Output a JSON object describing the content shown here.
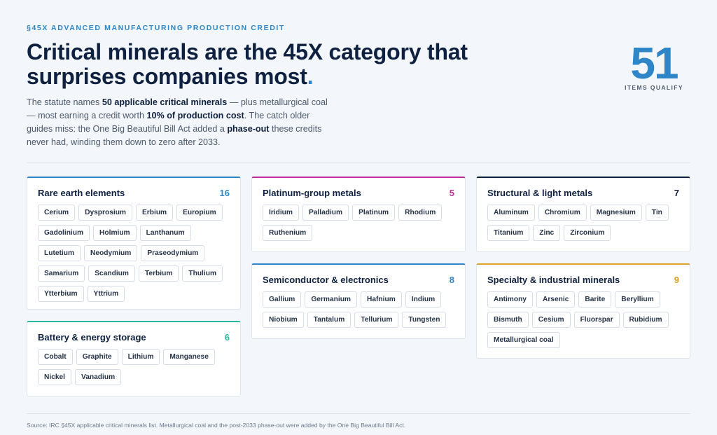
{
  "header": {
    "eyebrow": "§45X ADVANCED MANUFACTURING PRODUCTION CREDIT",
    "title_main": "Critical minerals are the 45X category that surprises companies most",
    "title_dot": ".",
    "intro": {
      "p1": "The statute names ",
      "b1": "50 applicable critical minerals",
      "p2": " — plus metallurgical coal — most earning a credit worth ",
      "b2": "10% of production cost",
      "p3": ". The catch older guides miss: the One Big Beautiful Bill Act added a ",
      "b3": "phase-out",
      "p4": " these credits never had, winding them down to zero after 2033."
    }
  },
  "stat": {
    "number": "51",
    "label": "ITEMS QUALIFY"
  },
  "colors": {
    "blue": "#2e86c9",
    "magenta": "#c22f9c",
    "navy": "#0f2140",
    "teal": "#2bb8a0",
    "gold": "#d9a021"
  },
  "cards": [
    {
      "id": "rare-earth",
      "title": "Rare earth elements",
      "count": "16",
      "accent": "#2e86c9",
      "items": [
        "Cerium",
        "Dysprosium",
        "Erbium",
        "Europium",
        "Gadolinium",
        "Holmium",
        "Lanthanum",
        "Lutetium",
        "Neodymium",
        "Praseodymium",
        "Samarium",
        "Scandium",
        "Terbium",
        "Thulium",
        "Ytterbium",
        "Yttrium"
      ]
    },
    {
      "id": "battery",
      "title": "Battery & energy storage",
      "count": "6",
      "accent": "#2bb8a0",
      "items": [
        "Cobalt",
        "Graphite",
        "Lithium",
        "Manganese",
        "Nickel",
        "Vanadium"
      ]
    },
    {
      "id": "platinum",
      "title": "Platinum-group metals",
      "count": "5",
      "accent": "#c22f9c",
      "items": [
        "Iridium",
        "Palladium",
        "Platinum",
        "Rhodium",
        "Ruthenium"
      ]
    },
    {
      "id": "semiconductor",
      "title": "Semiconductor & electronics",
      "count": "8",
      "accent": "#2e86c9",
      "items": [
        "Gallium",
        "Germanium",
        "Hafnium",
        "Indium",
        "Niobium",
        "Tantalum",
        "Tellurium",
        "Tungsten"
      ]
    },
    {
      "id": "structural",
      "title": "Structural & light metals",
      "count": "7",
      "accent": "#0f2140",
      "items": [
        "Aluminum",
        "Chromium",
        "Magnesium",
        "Tin",
        "Titanium",
        "Zinc",
        "Zirconium"
      ]
    },
    {
      "id": "specialty",
      "title": "Specialty & industrial minerals",
      "count": "9",
      "accent": "#d9a021",
      "items": [
        "Antimony",
        "Arsenic",
        "Barite",
        "Beryllium",
        "Bismuth",
        "Cesium",
        "Fluorspar",
        "Rubidium",
        "Metallurgical coal"
      ]
    }
  ],
  "footer": {
    "source": "Source: IRC §45X applicable critical minerals list. Metallurgical coal and the post-2033 phase-out were added by the One Big Beautiful Bill Act."
  }
}
